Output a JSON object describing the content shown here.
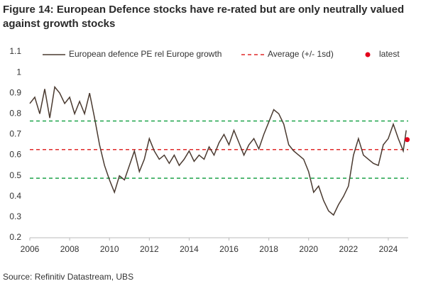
{
  "chart_data": {
    "type": "line",
    "title_lines": [
      "Figure 14: European Defence stocks have re-rated but are only neutrally valued",
      "against growth stocks"
    ],
    "source": "Source: Refinitiv Datastream, UBS",
    "xlim": [
      2006,
      2025
    ],
    "xticks": [
      2006,
      2008,
      2010,
      2012,
      2014,
      2016,
      2018,
      2020,
      2022,
      2024
    ],
    "ylim": [
      0.2,
      1.1
    ],
    "yticks": [
      0.2,
      0.3,
      0.4,
      0.5,
      0.6,
      0.7,
      0.8,
      0.9,
      1,
      1.1
    ],
    "x": [
      2006.0,
      2006.25,
      2006.5,
      2006.75,
      2007.0,
      2007.25,
      2007.5,
      2007.75,
      2008.0,
      2008.25,
      2008.5,
      2008.75,
      2009.0,
      2009.25,
      2009.5,
      2009.75,
      2010.0,
      2010.25,
      2010.5,
      2010.75,
      2011.0,
      2011.25,
      2011.5,
      2011.75,
      2012.0,
      2012.25,
      2012.5,
      2012.75,
      2013.0,
      2013.25,
      2013.5,
      2013.75,
      2014.0,
      2014.25,
      2014.5,
      2014.75,
      2015.0,
      2015.25,
      2015.5,
      2015.75,
      2016.0,
      2016.25,
      2016.5,
      2016.75,
      2017.0,
      2017.25,
      2017.5,
      2017.75,
      2018.0,
      2018.25,
      2018.5,
      2018.75,
      2019.0,
      2019.25,
      2019.5,
      2019.75,
      2020.0,
      2020.25,
      2020.5,
      2020.75,
      2021.0,
      2021.25,
      2021.5,
      2021.75,
      2022.0,
      2022.25,
      2022.5,
      2022.75,
      2023.0,
      2023.25,
      2023.5,
      2023.75,
      2024.0,
      2024.25,
      2024.5,
      2024.75,
      2024.9
    ],
    "series": [
      {
        "name": "European defence PE rel Europe growth",
        "color": "#4a3a30",
        "values": [
          0.85,
          0.88,
          0.8,
          0.92,
          0.78,
          0.93,
          0.9,
          0.85,
          0.88,
          0.8,
          0.86,
          0.8,
          0.9,
          0.78,
          0.65,
          0.55,
          0.48,
          0.42,
          0.5,
          0.48,
          0.55,
          0.62,
          0.52,
          0.58,
          0.68,
          0.62,
          0.58,
          0.6,
          0.56,
          0.6,
          0.55,
          0.58,
          0.62,
          0.57,
          0.6,
          0.58,
          0.64,
          0.6,
          0.66,
          0.7,
          0.65,
          0.72,
          0.66,
          0.6,
          0.65,
          0.68,
          0.63,
          0.7,
          0.76,
          0.82,
          0.8,
          0.75,
          0.65,
          0.62,
          0.6,
          0.58,
          0.52,
          0.42,
          0.45,
          0.38,
          0.33,
          0.31,
          0.36,
          0.4,
          0.45,
          0.6,
          0.68,
          0.6,
          0.58,
          0.56,
          0.55,
          0.65,
          0.68,
          0.75,
          0.68,
          0.62,
          0.72
        ]
      }
    ],
    "average": {
      "name": "Average (+/- 1sd)",
      "color": "#e02a2a",
      "band_color": "#1fa34a",
      "mean": 0.627,
      "lower": 0.488,
      "upper": 0.765
    },
    "latest": {
      "name": "latest",
      "color": "#e3001b",
      "x": 2024.95,
      "value": 0.675
    }
  }
}
